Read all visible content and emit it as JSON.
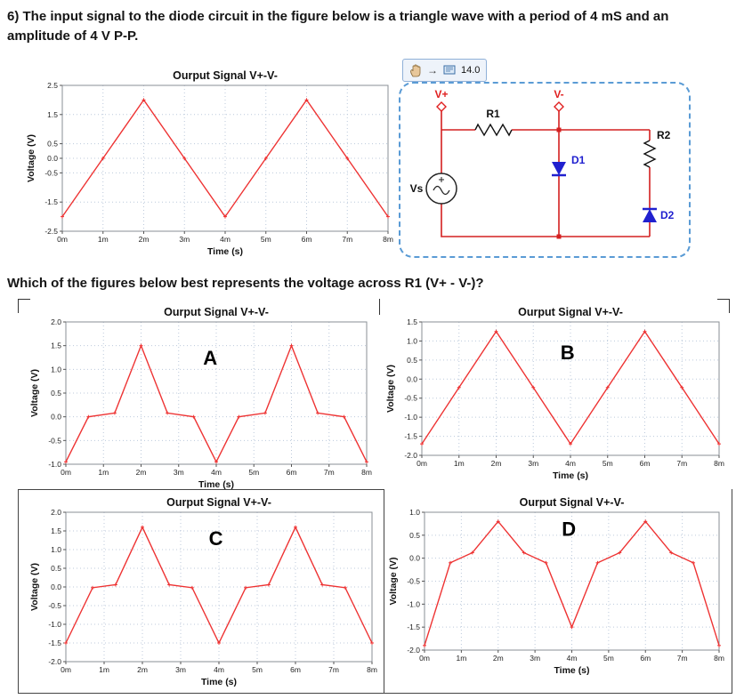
{
  "header": {
    "question_line1": "6) The input signal to the diode circuit in the figure below is a triangle wave with a period of 4 mS and an",
    "question_line2": "amplitude of 4 V P-P.",
    "sub_question": "Which of the figures below best represents the voltage across R1 (V+ - V-)?"
  },
  "toolbar": {
    "hand_icon": "hand-grab-tool",
    "arrow_glyph": "→",
    "screen_icon": "screen-tool",
    "value": "14.0"
  },
  "circuit": {
    "labels": {
      "vplus": "V+",
      "vminus": "V-",
      "r1": "R1",
      "d1": "D1",
      "r2": "R2",
      "d2": "D2",
      "vs": "Vs"
    },
    "colors": {
      "wire": "#d42020",
      "diode": "#2020cf",
      "dashed_border": "#5a9bd5",
      "trace": "#ee3333"
    }
  },
  "chart_data": [
    {
      "id": "input-signal",
      "type": "line",
      "title": "Ourput Signal V+-V-",
      "xlabel": "Time (s)",
      "ylabel": "Voltage (V)",
      "xlim": [
        0,
        8
      ],
      "ylim": [
        -2.5,
        2.5
      ],
      "xticks": [
        0,
        1,
        2,
        3,
        4,
        5,
        6,
        7,
        8
      ],
      "xtick_labels": [
        "0m",
        "1m",
        "2m",
        "3m",
        "4m",
        "5m",
        "6m",
        "7m",
        "8m"
      ],
      "yticks": [
        2.5,
        1.5,
        0.5,
        0,
        -0.5,
        -1.5,
        -2.5
      ],
      "grid": true,
      "series": [
        {
          "name": "V+-V-",
          "color": "#ee3333",
          "points": [
            [
              0,
              -2
            ],
            [
              1,
              0
            ],
            [
              2,
              2
            ],
            [
              3,
              0
            ],
            [
              4,
              -2
            ],
            [
              5,
              0
            ],
            [
              6,
              2
            ],
            [
              7,
              0
            ],
            [
              8,
              -2
            ]
          ]
        }
      ]
    },
    {
      "id": "option-A",
      "type": "line",
      "label": "A",
      "label_xy": [
        0.48,
        0.3
      ],
      "title": "Ourput Signal V+-V-",
      "xlabel": "Time (s)",
      "ylabel": "Voltage (V)",
      "xlim": [
        0,
        8
      ],
      "ylim": [
        -1.0,
        2.0
      ],
      "xticks": [
        0,
        1,
        2,
        3,
        4,
        5,
        6,
        7,
        8
      ],
      "xtick_labels": [
        "0m",
        "1m",
        "2m",
        "3m",
        "4m",
        "5m",
        "6m",
        "7m",
        "8m"
      ],
      "yticks": [
        2.0,
        1.5,
        1.0,
        0.5,
        0,
        -0.5,
        -1.0
      ],
      "grid": true,
      "series": [
        {
          "name": "V+-V-",
          "color": "#ee3333",
          "points": [
            [
              0,
              -0.95
            ],
            [
              0.6,
              0
            ],
            [
              1.3,
              0.08
            ],
            [
              2,
              1.5
            ],
            [
              2.7,
              0.08
            ],
            [
              3.4,
              0
            ],
            [
              4,
              -0.95
            ],
            [
              4.6,
              0
            ],
            [
              5.3,
              0.08
            ],
            [
              6,
              1.5
            ],
            [
              6.7,
              0.08
            ],
            [
              7.4,
              0
            ],
            [
              8,
              -0.95
            ]
          ]
        }
      ]
    },
    {
      "id": "option-B",
      "type": "line",
      "label": "B",
      "label_xy": [
        0.49,
        0.28
      ],
      "title": "Ourput Signal V+-V-",
      "xlabel": "Time (s)",
      "ylabel": "Voltage (V)",
      "xlim": [
        0,
        8
      ],
      "ylim": [
        -2.0,
        1.5
      ],
      "xticks": [
        0,
        1,
        2,
        3,
        4,
        5,
        6,
        7,
        8
      ],
      "xtick_labels": [
        "0m",
        "1m",
        "2m",
        "3m",
        "4m",
        "5m",
        "6m",
        "7m",
        "8m"
      ],
      "yticks": [
        1.5,
        1.0,
        0.5,
        0,
        -0.5,
        -1.0,
        -1.5,
        -2.0
      ],
      "grid": true,
      "series": [
        {
          "name": "V+-V-",
          "color": "#ee3333",
          "points": [
            [
              0,
              -1.7
            ],
            [
              1,
              -0.22
            ],
            [
              2,
              1.25
            ],
            [
              3,
              -0.22
            ],
            [
              4,
              -1.7
            ],
            [
              5,
              -0.22
            ],
            [
              6,
              1.25
            ],
            [
              7,
              -0.22
            ],
            [
              8,
              -1.7
            ]
          ]
        }
      ]
    },
    {
      "id": "option-C",
      "type": "line",
      "label": "C",
      "label_xy": [
        0.49,
        0.22
      ],
      "title": "Ourput Signal V+-V-",
      "xlabel": "Time (s)",
      "ylabel": "Voltage (V)",
      "xlim": [
        0,
        8
      ],
      "ylim": [
        -2.0,
        2.0
      ],
      "xticks": [
        0,
        1,
        2,
        3,
        4,
        5,
        6,
        7,
        8
      ],
      "xtick_labels": [
        "0m",
        "1m",
        "2m",
        "3m",
        "4m",
        "5m",
        "6m",
        "7m",
        "8m"
      ],
      "yticks": [
        2.0,
        1.5,
        1.0,
        0.5,
        0,
        -0.5,
        -1.0,
        -1.5,
        -2.0
      ],
      "grid": true,
      "series": [
        {
          "name": "V+-V-",
          "color": "#ee3333",
          "points": [
            [
              0,
              -1.5
            ],
            [
              0.7,
              -0.02
            ],
            [
              1.3,
              0.06
            ],
            [
              2,
              1.6
            ],
            [
              2.7,
              0.06
            ],
            [
              3.3,
              -0.02
            ],
            [
              4,
              -1.5
            ],
            [
              4.7,
              -0.02
            ],
            [
              5.3,
              0.06
            ],
            [
              6,
              1.6
            ],
            [
              6.7,
              0.06
            ],
            [
              7.3,
              -0.02
            ],
            [
              8,
              -1.5
            ]
          ]
        }
      ]
    },
    {
      "id": "option-D",
      "type": "line",
      "label": "D",
      "label_xy": [
        0.49,
        0.17
      ],
      "title": "Ourput Signal V+-V-",
      "xlabel": "Time (s)",
      "ylabel": "Voltage (V)",
      "xlim": [
        0,
        8
      ],
      "ylim": [
        -2.0,
        1.0
      ],
      "xticks": [
        0,
        1,
        2,
        3,
        4,
        5,
        6,
        7,
        8
      ],
      "xtick_labels": [
        "0m",
        "1m",
        "2m",
        "3m",
        "4m",
        "5m",
        "6m",
        "7m",
        "8m"
      ],
      "yticks": [
        1.0,
        0.5,
        0,
        -0.5,
        -1.0,
        -1.5,
        -2.0
      ],
      "grid": true,
      "series": [
        {
          "name": "V+-V-",
          "color": "#ee3333",
          "points": [
            [
              0,
              -1.9
            ],
            [
              0.7,
              -0.1
            ],
            [
              1.3,
              0.12
            ],
            [
              2,
              0.8
            ],
            [
              2.7,
              0.12
            ],
            [
              3.3,
              -0.1
            ],
            [
              4,
              -1.5
            ],
            [
              4.7,
              -0.1
            ],
            [
              5.3,
              0.12
            ],
            [
              6,
              0.8
            ],
            [
              6.7,
              0.12
            ],
            [
              7.3,
              -0.1
            ],
            [
              8,
              -1.9
            ]
          ]
        }
      ]
    }
  ]
}
